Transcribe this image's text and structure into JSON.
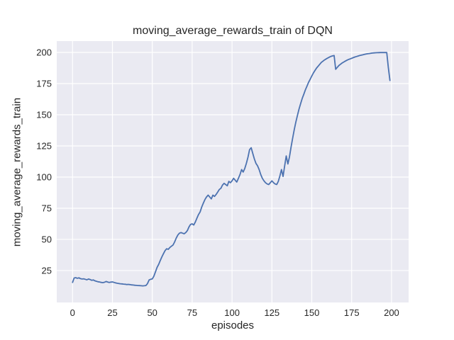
{
  "colors": {
    "line": "#4C72B0",
    "plot_background": "#EAEAF2",
    "gridline": "#FFFFFF",
    "text": "#262626",
    "figure_background": "#FFFFFF"
  },
  "chart_data": {
    "type": "line",
    "title": "moving_average_rewards_train of DQN",
    "xlabel": "episodes",
    "ylabel": "moving_average_rewards_train",
    "x_ticks": [
      0,
      25,
      50,
      75,
      100,
      125,
      150,
      175,
      200
    ],
    "y_ticks": [
      25,
      50,
      75,
      100,
      125,
      150,
      175,
      200
    ],
    "xlim": [
      -9.9,
      210.7
    ],
    "ylim": [
      -0.6,
      209.1
    ],
    "grid": true,
    "legend": false,
    "x_range": [
      0,
      199
    ],
    "series": [
      {
        "name": "moving_average_rewards_train",
        "x_start": 0,
        "x_step": 1,
        "values": [
          15.5,
          19.0,
          19.3,
          18.8,
          19.2,
          18.5,
          18.2,
          18.4,
          18.0,
          17.6,
          18.2,
          17.8,
          17.2,
          17.5,
          16.8,
          16.4,
          16.0,
          15.8,
          15.5,
          15.3,
          15.6,
          16.2,
          15.8,
          15.4,
          15.7,
          15.9,
          15.5,
          15.1,
          14.8,
          14.6,
          14.4,
          14.3,
          14.1,
          14.0,
          13.8,
          13.9,
          13.7,
          13.5,
          13.4,
          13.2,
          13.1,
          13.0,
          12.9,
          12.8,
          12.7,
          12.8,
          13.0,
          14.5,
          17.5,
          18.0,
          18.3,
          20.5,
          24.0,
          27.5,
          30.0,
          33.0,
          36.0,
          38.5,
          41.0,
          42.5,
          42.0,
          43.5,
          44.5,
          45.5,
          48.0,
          51.0,
          53.5,
          55.0,
          55.5,
          55.0,
          54.5,
          55.5,
          57.0,
          60.0,
          62.0,
          62.5,
          61.5,
          64.0,
          67.0,
          70.0,
          72.0,
          76.0,
          79.0,
          82.0,
          84.0,
          85.5,
          84.0,
          82.5,
          85.5,
          84.5,
          86.0,
          88.0,
          90.0,
          91.0,
          93.5,
          95.0,
          94.0,
          93.0,
          96.5,
          95.5,
          97.0,
          99.0,
          97.5,
          96.0,
          99.0,
          102.0,
          106.0,
          104.0,
          107.0,
          111.0,
          116.0,
          122.0,
          123.5,
          119.0,
          114.5,
          111.0,
          109.0,
          106.0,
          102.0,
          99.0,
          97.0,
          95.5,
          94.5,
          94.0,
          95.5,
          97.0,
          95.5,
          94.5,
          94.0,
          96.5,
          101.0,
          106.0,
          100.5,
          109.0,
          117.0,
          110.5,
          116.0,
          124.0,
          131.0,
          138.0,
          144.0,
          149.5,
          154.5,
          159.0,
          163.0,
          166.5,
          170.0,
          173.0,
          176.0,
          178.5,
          181.0,
          183.5,
          185.5,
          187.5,
          189.0,
          190.5,
          192.0,
          193.0,
          194.0,
          194.8,
          195.5,
          196.2,
          196.8,
          197.2,
          197.5,
          186.5,
          188.0,
          189.5,
          190.5,
          191.5,
          192.3,
          193.0,
          193.7,
          194.3,
          194.8,
          195.3,
          195.8,
          196.3,
          196.7,
          197.1,
          197.5,
          197.8,
          198.1,
          198.4,
          198.7,
          198.9,
          199.1,
          199.3,
          199.5,
          199.6,
          199.7,
          199.8,
          199.85,
          199.9,
          199.9,
          199.9,
          199.9,
          199.9,
          188.0,
          177.5
        ]
      }
    ]
  }
}
